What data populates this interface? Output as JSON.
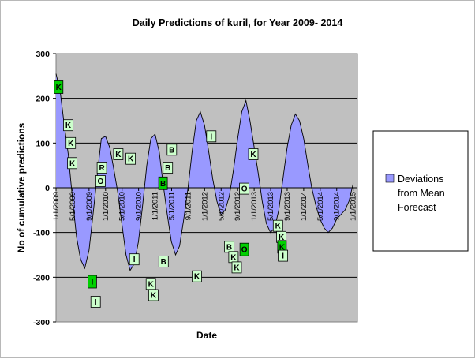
{
  "chart_data": {
    "type": "area",
    "title": "Daily Predictions of kuril, for Year 2009- 2014",
    "xlabel": "Date",
    "ylabel": "No of cumulative predictions",
    "ylim": [
      -300,
      300
    ],
    "yticks": [
      -300,
      -200,
      -100,
      0,
      100,
      200,
      300
    ],
    "grid": true,
    "legend_position": "right",
    "colors": {
      "plot_bg": "#c0c0c0",
      "area_fill": "#9999ff",
      "line": "#000000",
      "marker_bright": "#00d000",
      "marker_pale": "#ccffcc"
    },
    "x_tick_labels": [
      "1/1/2009",
      "5/1/2009",
      "9/1/2009",
      "1/1/2010",
      "5/1/2010",
      "9/1/2010",
      "1/1/2011",
      "5/1/2011",
      "9/1/2011",
      "1/1/2012",
      "5/1/2012",
      "9/1/2012",
      "1/1/2013",
      "5/1/2013",
      "9/1/2013",
      "1/1/2014",
      "5/1/2014",
      "9/1/2014",
      "1/1/2015"
    ],
    "series": [
      {
        "name": "Deviations from Mean Forecast",
        "x": [
          "2009-01",
          "2009-02",
          "2009-03",
          "2009-04",
          "2009-05",
          "2009-06",
          "2009-07",
          "2009-08",
          "2009-09",
          "2009-10",
          "2009-11",
          "2009-12",
          "2010-01",
          "2010-02",
          "2010-03",
          "2010-04",
          "2010-05",
          "2010-06",
          "2010-07",
          "2010-08",
          "2010-09",
          "2010-10",
          "2010-11",
          "2010-12",
          "2011-01",
          "2011-02",
          "2011-03",
          "2011-04",
          "2011-05",
          "2011-06",
          "2011-07",
          "2011-08",
          "2011-09",
          "2011-10",
          "2011-11",
          "2011-12",
          "2012-01",
          "2012-02",
          "2012-03",
          "2012-04",
          "2012-05",
          "2012-06",
          "2012-07",
          "2012-08",
          "2012-09",
          "2012-10",
          "2012-11",
          "2012-12",
          "2013-01",
          "2013-02",
          "2013-03",
          "2013-04",
          "2013-05",
          "2013-06",
          "2013-07",
          "2013-08",
          "2013-09",
          "2013-10",
          "2013-11",
          "2013-12",
          "2014-01",
          "2014-02",
          "2014-03",
          "2014-04",
          "2014-05",
          "2014-06",
          "2014-07",
          "2014-08",
          "2014-09",
          "2014-10",
          "2014-11",
          "2014-12",
          "2015-01"
        ],
        "values": [
          255,
          215,
          145,
          75,
          -20,
          -110,
          -160,
          -180,
          -140,
          -60,
          30,
          110,
          115,
          90,
          45,
          -10,
          -80,
          -150,
          -185,
          -170,
          -120,
          -40,
          50,
          110,
          120,
          80,
          10,
          -60,
          -120,
          -150,
          -130,
          -70,
          0,
          80,
          150,
          170,
          140,
          80,
          20,
          -30,
          -60,
          -50,
          -20,
          40,
          110,
          170,
          195,
          150,
          90,
          30,
          -30,
          -80,
          -100,
          -90,
          -50,
          20,
          90,
          140,
          165,
          150,
          110,
          50,
          0,
          -40,
          -70,
          -90,
          -100,
          -90,
          -70,
          -60,
          -50,
          -30,
          10
        ]
      }
    ],
    "markers": [
      {
        "label": "K",
        "date": "2009-01-20",
        "value": 225,
        "style": "bright"
      },
      {
        "label": "K",
        "date": "2009-04-01",
        "value": 140,
        "style": "pale"
      },
      {
        "label": "K",
        "date": "2009-04-20",
        "value": 100,
        "style": "pale"
      },
      {
        "label": "K",
        "date": "2009-05-01",
        "value": 55,
        "style": "pale"
      },
      {
        "label": "I",
        "date": "2009-09-25",
        "value": -210,
        "style": "bright"
      },
      {
        "label": "I",
        "date": "2009-10-20",
        "value": -255,
        "style": "pale"
      },
      {
        "label": "R",
        "date": "2009-12-05",
        "value": 45,
        "style": "pale"
      },
      {
        "label": "O",
        "date": "2009-11-25",
        "value": 15,
        "style": "pale"
      },
      {
        "label": "K",
        "date": "2010-04-05",
        "value": 75,
        "style": "pale"
      },
      {
        "label": "K",
        "date": "2010-07-05",
        "value": 65,
        "style": "pale"
      },
      {
        "label": "I",
        "date": "2010-08-01",
        "value": -160,
        "style": "pale"
      },
      {
        "label": "K",
        "date": "2010-12-01",
        "value": -215,
        "style": "pale"
      },
      {
        "label": "K",
        "date": "2010-12-20",
        "value": -240,
        "style": "pale"
      },
      {
        "label": "B",
        "date": "2011-03-05",
        "value": -165,
        "style": "pale"
      },
      {
        "label": "B",
        "date": "2011-05-05",
        "value": 85,
        "style": "pale"
      },
      {
        "label": "B",
        "date": "2011-04-05",
        "value": 45,
        "style": "pale"
      },
      {
        "label": "B",
        "date": "2011-03-01",
        "value": 10,
        "style": "bright"
      },
      {
        "label": "K",
        "date": "2011-11-05",
        "value": -198,
        "style": "pale"
      },
      {
        "label": "I",
        "date": "2012-02-20",
        "value": 115,
        "style": "pale"
      },
      {
        "label": "B",
        "date": "2012-07-01",
        "value": -132,
        "style": "pale"
      },
      {
        "label": "K",
        "date": "2012-08-01",
        "value": -155,
        "style": "pale"
      },
      {
        "label": "K",
        "date": "2012-08-25",
        "value": -178,
        "style": "pale"
      },
      {
        "label": "O",
        "date": "2012-10-20",
        "value": -138,
        "style": "bright"
      },
      {
        "label": "O",
        "date": "2012-10-20",
        "value": -2,
        "style": "pale"
      },
      {
        "label": "K",
        "date": "2012-12-25",
        "value": 75,
        "style": "pale"
      },
      {
        "label": "K",
        "date": "2013-06-25",
        "value": -85,
        "style": "pale"
      },
      {
        "label": "K",
        "date": "2013-07-20",
        "value": -110,
        "style": "pale"
      },
      {
        "label": "K",
        "date": "2013-07-25",
        "value": -132,
        "style": "bright"
      },
      {
        "label": "I",
        "date": "2013-08-01",
        "value": -152,
        "style": "pale"
      }
    ]
  }
}
